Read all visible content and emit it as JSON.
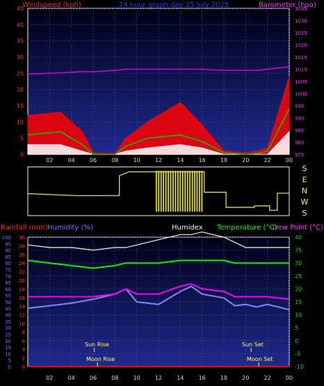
{
  "header": {
    "left": "Windspeed (kph)",
    "center": "24 hour graph day 25 July 2025",
    "right": "Barometer (hpa)"
  },
  "colors": {
    "wind_gust": "#ff0000",
    "wind_avg": "#00cc00",
    "wind_min": "#ffffff",
    "barometer": "#dd00dd",
    "direction": "#ffff00",
    "humidex": "#ffffff",
    "temperature": "#00ff00",
    "dew_point": "#ff00ff",
    "humidity": "#8888ff",
    "rainfall": "#ff0000",
    "axis_red": "#ff3333",
    "axis_blue": "#7777ff",
    "axis_green": "#00dd00",
    "axis_magenta": "#ff33ff"
  },
  "chart_data": [
    {
      "type": "line",
      "id": "wind",
      "ylim": [
        0,
        45
      ],
      "y_ticks": [
        0,
        5,
        10,
        15,
        20,
        25,
        30,
        35,
        40,
        45
      ],
      "y2lim": [
        975,
        1035
      ],
      "y2_ticks": [
        975,
        980,
        985,
        990,
        995,
        1000,
        1005,
        1010,
        1015,
        1020,
        1025,
        1030,
        1035
      ],
      "x_hours": [
        0,
        3,
        5,
        6,
        8,
        9,
        11,
        14,
        16,
        18,
        20,
        21,
        22,
        24
      ],
      "series": [
        {
          "values": [
            12,
            13,
            7,
            0.5,
            0.3,
            5,
            10,
            16,
            9,
            1,
            0.5,
            1,
            2,
            24
          ]
        },
        {
          "values": [
            6,
            7,
            3,
            0,
            0,
            2.5,
            5,
            6,
            4,
            0.5,
            0,
            0.3,
            1,
            14
          ]
        },
        {
          "values": [
            3,
            3,
            1,
            0,
            0,
            1,
            2,
            3,
            2,
            0,
            0,
            0,
            0,
            7
          ]
        },
        {
          "values": [
            1008,
            1008.5,
            1009,
            1009,
            1009.5,
            1010,
            1010,
            1010,
            1010,
            1009.5,
            1009.5,
            1009.5,
            1010,
            1011
          ]
        }
      ]
    },
    {
      "type": "line",
      "id": "direction",
      "y_ticks": [
        "S",
        "E",
        "N",
        "W",
        "S"
      ],
      "x_hours": [
        0,
        4.6,
        4.6,
        8.4,
        8.4,
        9.3,
        9.3,
        16.2,
        16.2,
        18.2,
        18.2,
        20.8,
        20.8,
        22.2,
        22.2,
        22.9,
        22.9,
        24
      ],
      "series": [
        {
          "values": [
            45,
            41,
            41,
            41,
            82,
            90,
            90,
            90,
            48,
            48,
            17,
            17,
            20,
            20,
            11,
            11,
            46,
            46
          ]
        }
      ]
    },
    {
      "type": "line",
      "id": "temperature",
      "y_left_ticks": [
        0,
        5,
        10,
        15,
        20,
        25,
        30,
        35,
        40,
        45,
        50,
        55,
        60,
        65,
        70,
        75,
        80,
        85,
        90,
        95,
        100
      ],
      "y_rain_ticks": [
        0,
        2,
        4,
        6,
        8,
        10,
        12,
        14,
        16,
        18,
        20,
        22,
        24,
        26,
        28,
        30
      ],
      "y_temp_ticks": [
        -10,
        -5,
        0,
        5,
        10,
        15,
        20,
        25,
        30,
        35,
        40
      ],
      "ylim": [
        -10,
        40
      ],
      "x_hours": [
        0,
        2,
        4,
        6,
        8,
        9,
        10,
        12,
        14,
        15,
        16,
        18,
        19,
        20,
        21,
        22,
        24
      ],
      "series": [
        {
          "name": "Humidex",
          "values": [
            37,
            36,
            36,
            35,
            36,
            36,
            37,
            39,
            41,
            41,
            42,
            40,
            38,
            36,
            36,
            36,
            36
          ]
        },
        {
          "name": "Temperature (°C)",
          "values": [
            31,
            30,
            29,
            28,
            29,
            30,
            30,
            30,
            31,
            31,
            31,
            31,
            30,
            30,
            30,
            30,
            30
          ]
        },
        {
          "name": "Dew Point (°C)",
          "values": [
            17,
            17,
            17,
            17,
            18,
            20,
            18,
            18,
            21,
            22,
            20,
            19,
            17,
            17,
            17,
            17,
            16
          ]
        },
        {
          "name": "Humidity (%)",
          "values": [
            45,
            47,
            49,
            52,
            56,
            60,
            50,
            48,
            58,
            62,
            56,
            53,
            47,
            48,
            46,
            48,
            44
          ]
        }
      ],
      "rainfall": [
        0,
        0,
        0,
        0,
        0,
        0,
        0,
        0,
        0,
        0,
        0,
        0,
        0,
        0,
        0,
        0,
        0
      ]
    }
  ],
  "x_axis_labels": [
    "02",
    "04",
    "06",
    "08",
    "10",
    "12",
    "14",
    "16",
    "18",
    "20",
    "22",
    "00"
  ],
  "wind_dir_labels": [
    "S",
    "E",
    "N",
    "W",
    "S"
  ],
  "lower_header": {
    "rainfall": "Rainfall (mm)",
    "humidity": "Humidity (%)",
    "humidex": "Humidex",
    "temperature": "Temperature (°C)",
    "dewpoint": "Dew Point (°C)"
  },
  "astro": {
    "sun_rise": "Sun Rise",
    "moon_rise": "Moon Rise",
    "sun_set": "Sun Set",
    "moon_set": "Moon Set"
  }
}
